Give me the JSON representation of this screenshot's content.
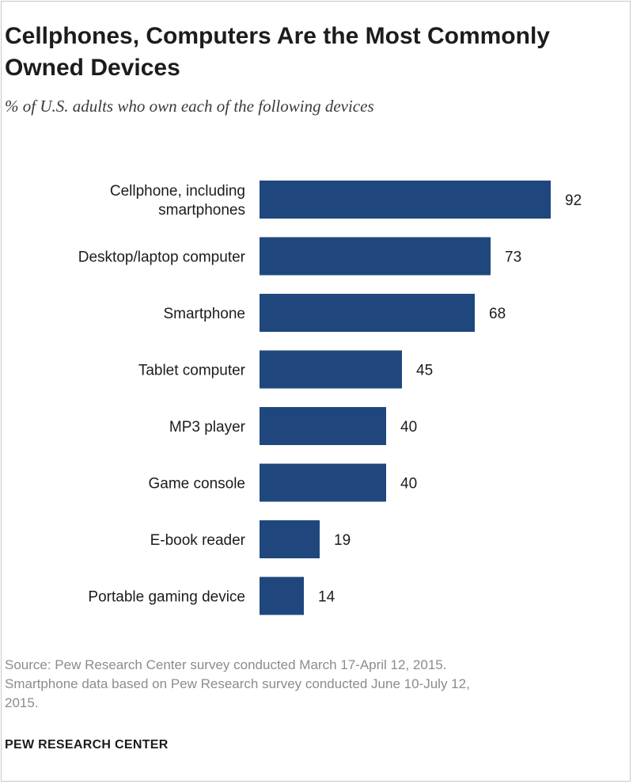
{
  "chart_data": {
    "type": "bar",
    "orientation": "horizontal",
    "title": "Cellphones, Computers Are the Most Commonly Owned Devices",
    "subtitle": "% of U.S. adults who own each of the following devices",
    "categories": [
      [
        "Cellphone, including",
        "smartphones"
      ],
      [
        "Desktop/laptop computer"
      ],
      [
        "Smartphone"
      ],
      [
        "Tablet computer"
      ],
      [
        "MP3 player"
      ],
      [
        "Game console"
      ],
      [
        "E-book reader"
      ],
      [
        "Portable gaming device"
      ]
    ],
    "values": [
      92,
      73,
      68,
      45,
      40,
      40,
      19,
      14
    ],
    "xlim": [
      0,
      100
    ],
    "grid": false,
    "bar_color": "#1f477d"
  },
  "footer": {
    "source_lines": [
      "Source: Pew Research Center survey conducted March 17-April 12, 2015.",
      "Smartphone data based on Pew Research survey conducted June 10-July 12,",
      "2015."
    ],
    "brand": "PEW RESEARCH CENTER"
  }
}
